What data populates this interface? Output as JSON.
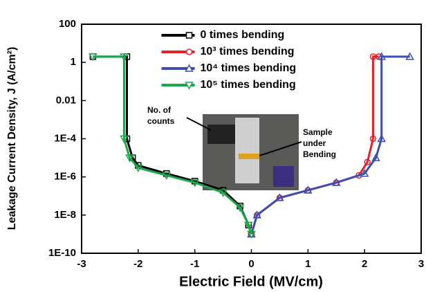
{
  "chart_data": {
    "type": "line",
    "xlabel": "Electric Field (MV/cm)",
    "ylabel": "Leakage Current Density, J (A/cm²)",
    "xlim": [
      -3,
      3
    ],
    "xticks": [
      -3,
      -2,
      -1,
      0,
      1,
      2,
      3
    ],
    "ylim": [
      1e-10,
      100
    ],
    "ylog": true,
    "yticks": [
      100,
      1,
      0.01,
      {
        "value": 0.0001,
        "label": "1E-4"
      },
      {
        "value": 1e-06,
        "label": "1E-6"
      },
      {
        "value": 1e-08,
        "label": "1E-8"
      },
      {
        "value": 1e-10,
        "label": "1E-10"
      }
    ],
    "legend_loc": "upper center",
    "series": [
      {
        "name": "0 times bending",
        "color": "#000000",
        "marker": "square",
        "x": [
          -2.8,
          -2.2,
          -2.2,
          -2.1,
          -2.0,
          -1.5,
          -1.0,
          -0.5,
          -0.2,
          -0.05,
          0
        ],
        "values": [
          2,
          2,
          0.0001,
          1e-05,
          4e-06,
          1.5e-06,
          6e-07,
          2e-07,
          3e-08,
          3e-09,
          1e-09
        ]
      },
      {
        "name": "10³ times bending",
        "color": "#e8202a",
        "marker": "circle",
        "x": [
          0,
          0.1,
          0.5,
          1.0,
          1.5,
          1.9,
          2.05,
          2.15,
          2.15,
          2.25
        ],
        "values": [
          1e-09,
          1e-08,
          8e-08,
          2e-07,
          5e-07,
          1.2e-06,
          6e-06,
          0.0001,
          2,
          2
        ]
      },
      {
        "name": "10⁴ times bending",
        "color": "#3a4fb0",
        "marker": "triangle-up",
        "x": [
          0,
          0.1,
          0.5,
          1.0,
          1.5,
          2.0,
          2.2,
          2.3,
          2.3,
          2.8
        ],
        "values": [
          1e-09,
          1e-08,
          8e-08,
          2e-07,
          5e-07,
          1.5e-06,
          1e-05,
          0.0001,
          2,
          2
        ]
      },
      {
        "name": "10⁵ times bending",
        "color": "#1aa84a",
        "marker": "triangle-down",
        "x": [
          -2.8,
          -2.25,
          -2.25,
          -2.15,
          -2.0,
          -1.5,
          -1.0,
          -0.5,
          -0.2,
          -0.05,
          0
        ],
        "values": [
          2,
          2,
          0.0001,
          1e-05,
          3e-06,
          1.2e-06,
          5e-07,
          1.5e-07,
          2.5e-08,
          3e-09,
          1e-09
        ]
      }
    ],
    "annotations": [
      {
        "lines": [
          "No. of",
          "counts"
        ]
      },
      {
        "lines": [
          "Sample",
          "under",
          "Bending"
        ]
      }
    ]
  }
}
